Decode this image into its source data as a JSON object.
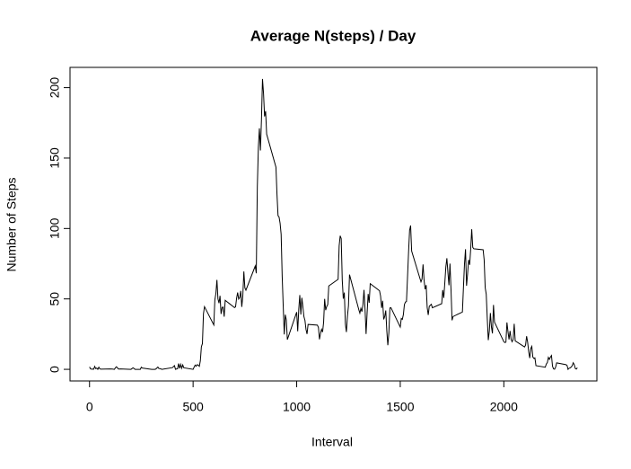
{
  "chart_data": {
    "type": "line",
    "title": "Average N(steps) / Day",
    "x_label": "Interval",
    "y_label": "Number of Steps",
    "color": "#000000",
    "x": [
      0,
      5,
      10,
      15,
      20,
      25,
      30,
      35,
      40,
      45,
      50,
      55,
      100,
      110,
      120,
      125,
      130,
      140,
      150,
      200,
      210,
      220,
      230,
      245,
      250,
      255,
      300,
      310,
      315,
      320,
      330,
      335,
      340,
      350,
      355,
      400,
      410,
      415,
      420,
      425,
      430,
      435,
      440,
      445,
      450,
      455,
      500,
      505,
      510,
      515,
      520,
      525,
      530,
      535,
      540,
      545,
      550,
      555,
      600,
      605,
      610,
      615,
      620,
      625,
      630,
      635,
      640,
      645,
      650,
      655,
      700,
      705,
      710,
      715,
      720,
      725,
      730,
      735,
      740,
      745,
      750,
      755,
      800,
      805,
      810,
      815,
      820,
      825,
      830,
      835,
      840,
      845,
      850,
      855,
      900,
      905,
      910,
      915,
      920,
      925,
      930,
      935,
      940,
      945,
      950,
      955,
      1000,
      1005,
      1010,
      1015,
      1020,
      1025,
      1030,
      1035,
      1040,
      1045,
      1050,
      1055,
      1100,
      1105,
      1110,
      1115,
      1120,
      1125,
      1130,
      1135,
      1140,
      1145,
      1150,
      1155,
      1200,
      1205,
      1210,
      1215,
      1220,
      1225,
      1230,
      1235,
      1240,
      1245,
      1250,
      1255,
      1300,
      1305,
      1310,
      1315,
      1320,
      1325,
      1330,
      1335,
      1340,
      1345,
      1350,
      1355,
      1400,
      1405,
      1410,
      1415,
      1420,
      1425,
      1430,
      1435,
      1440,
      1445,
      1450,
      1455,
      1500,
      1505,
      1510,
      1515,
      1520,
      1525,
      1530,
      1535,
      1540,
      1545,
      1550,
      1555,
      1600,
      1605,
      1610,
      1615,
      1620,
      1625,
      1630,
      1635,
      1640,
      1645,
      1650,
      1655,
      1700,
      1705,
      1710,
      1715,
      1720,
      1725,
      1730,
      1735,
      1740,
      1745,
      1750,
      1755,
      1800,
      1805,
      1810,
      1815,
      1820,
      1825,
      1830,
      1835,
      1840,
      1845,
      1850,
      1855,
      1900,
      1905,
      1910,
      1915,
      1920,
      1925,
      1930,
      1935,
      1940,
      1945,
      1950,
      1955,
      2000,
      2005,
      2010,
      2015,
      2020,
      2025,
      2030,
      2035,
      2040,
      2045,
      2050,
      2055,
      2100,
      2105,
      2110,
      2115,
      2120,
      2125,
      2130,
      2135,
      2140,
      2145,
      2150,
      2155,
      2200,
      2205,
      2210,
      2215,
      2220,
      2225,
      2230,
      2235,
      2240,
      2245,
      2250,
      2255,
      2300,
      2305,
      2310,
      2315,
      2320,
      2325,
      2330,
      2335,
      2340,
      2345,
      2350,
      2355
    ],
    "values": [
      1.7,
      0.3,
      0.1,
      0.2,
      0.1,
      2.1,
      0.5,
      0.9,
      0,
      1.5,
      0.3,
      0.1,
      0.3,
      0.2,
      0,
      1.1,
      1.8,
      0.2,
      0.3,
      0,
      1.1,
      0,
      0,
      0,
      1.5,
      0.9,
      0,
      0,
      0,
      0.2,
      1.6,
      0.6,
      0.5,
      0,
      0.1,
      1.2,
      2.6,
      0,
      0.3,
      0.4,
      4.1,
      0.7,
      3.5,
      0.8,
      3.1,
      1.1,
      0,
      1.6,
      3,
      2.2,
      3.3,
      3,
      2.1,
      6.1,
      16,
      18.3,
      39.5,
      44.5,
      31.5,
      49.3,
      53.8,
      63.5,
      50,
      47,
      52.2,
      39.3,
      44,
      44.2,
      37.4,
      49,
      43.8,
      44.4,
      50.5,
      54.5,
      49.9,
      51,
      55.7,
      44.3,
      52.3,
      69.5,
      57.8,
      56.2,
      73.4,
      68.2,
      129.4,
      157.5,
      171.2,
      155.4,
      177.3,
      206.2,
      195.9,
      179.6,
      183.4,
      167,
      143.5,
      124,
      109.1,
      108.1,
      103.7,
      95.9,
      66.2,
      45.2,
      24.8,
      38.8,
      35,
      21.1,
      40.6,
      27,
      42.4,
      52.7,
      38.9,
      50.8,
      44.3,
      37.4,
      34.7,
      28.3,
      25.1,
      31.9,
      31.4,
      29.7,
      21.3,
      25.5,
      28.4,
      26.5,
      33.4,
      50,
      42,
      44.6,
      46,
      59.2,
      63.9,
      87.7,
      94.8,
      92.8,
      63.4,
      50.2,
      54.5,
      32.4,
      26.5,
      37.7,
      45.1,
      67.3,
      42.3,
      39.9,
      43.3,
      41,
      46.2,
      56.4,
      42.8,
      25.1,
      40,
      53.5,
      47.3,
      60.8,
      55.8,
      52,
      43.6,
      48.7,
      35.5,
      37.5,
      41.8,
      27.5,
      17.1,
      26.1,
      43.6,
      43.8,
      30,
      36.1,
      35.5,
      38.8,
      46,
      47.8,
      48.1,
      65.3,
      82.9,
      98.7,
      102.1,
      84,
      62.1,
      64.1,
      74.5,
      63.2,
      56.9,
      59.8,
      43.9,
      38.6,
      44.7,
      45.5,
      46.2,
      43.7,
      46.6,
      56.3,
      50.7,
      61.2,
      72.7,
      78.9,
      68.9,
      59.7,
      75.1,
      56.5,
      34.8,
      37.5,
      40.7,
      58,
      74.7,
      85.3,
      59.3,
      67.8,
      77.7,
      74.2,
      85.3,
      99.5,
      86.6,
      85.6,
      84.9,
      77.8,
      58,
      53.4,
      36.3,
      20.7,
      27.4,
      40,
      30.2,
      25.5,
      45.7,
      33.5,
      19.6,
      19,
      19.3,
      33.3,
      26.8,
      21.2,
      27.3,
      21.3,
      19.6,
      21.3,
      32.3,
      20.2,
      15.9,
      17.2,
      23.5,
      19.2,
      12.5,
      8,
      14.7,
      16.3,
      8.7,
      7.8,
      8.1,
      2.6,
      1.5,
      3.7,
      4.8,
      8.5,
      7.1,
      8.7,
      9.8,
      2.2,
      0.3,
      0.1,
      1.6,
      4.6,
      3.3,
      2.8,
      0,
      0.8,
      1,
      1.6,
      2.6,
      4.7,
      3.3,
      0.6,
      0.2,
      1.1
    ],
    "xlim": [
      -94.2,
      2449.2
    ],
    "xticks": [
      0,
      500,
      1000,
      1500,
      2000
    ],
    "ylim": [
      -8.25,
      214.4
    ],
    "yticks": [
      0,
      50,
      100,
      150,
      200
    ]
  }
}
